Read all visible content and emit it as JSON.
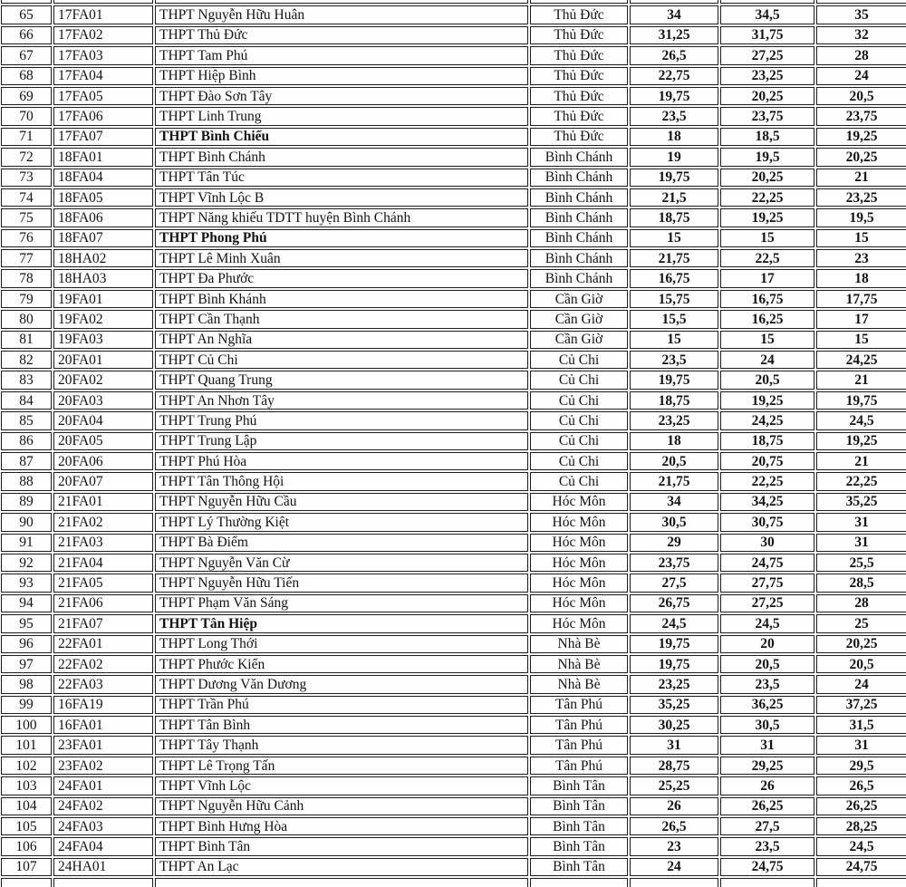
{
  "document": {
    "description": "Scanned table of high-school admission cutoff scores (rows 65-107), Ho Chi Minh City districts",
    "columns": {
      "no": "row number",
      "code": "school code",
      "school": "school name",
      "district": "district",
      "nv1": "score NV1",
      "nv2": "score NV2",
      "nv3": "score NV3"
    }
  },
  "colors": {
    "page_background": "#fbfbfa",
    "cell_background": "#fefefe",
    "border_dark": "#1d1d1d",
    "border_light": "#c9c9c9",
    "text": "#131313"
  },
  "table": {
    "rows": [
      {
        "no": "65",
        "code": "17FA01",
        "school": "THPT Nguyễn Hữu Huân",
        "district": "Thủ Đức",
        "nv1": "34",
        "nv2": "34,5",
        "nv3": "35",
        "bold": false
      },
      {
        "no": "66",
        "code": "17FA02",
        "school": "THPT Thủ Đức",
        "district": "Thủ Đức",
        "nv1": "31,25",
        "nv2": "31,75",
        "nv3": "32",
        "bold": false
      },
      {
        "no": "67",
        "code": "17FA03",
        "school": "THPT Tam Phú",
        "district": "Thủ Đức",
        "nv1": "26,5",
        "nv2": "27,25",
        "nv3": "28",
        "bold": false
      },
      {
        "no": "68",
        "code": "17FA04",
        "school": "THPT Hiệp Bình",
        "district": "Thủ Đức",
        "nv1": "22,75",
        "nv2": "23,25",
        "nv3": "24",
        "bold": false
      },
      {
        "no": "69",
        "code": "17FA05",
        "school": "THPT Đào Sơn Tây",
        "district": "Thủ Đức",
        "nv1": "19,75",
        "nv2": "20,25",
        "nv3": "20,5",
        "bold": false
      },
      {
        "no": "70",
        "code": "17FA06",
        "school": "THPT Linh Trung",
        "district": "Thủ Đức",
        "nv1": "23,5",
        "nv2": "23,75",
        "nv3": "23,75",
        "bold": false
      },
      {
        "no": "71",
        "code": "17FA07",
        "school": "THPT Bình Chiểu",
        "district": "Thủ Đức",
        "nv1": "18",
        "nv2": "18,5",
        "nv3": "19,25",
        "bold": true
      },
      {
        "no": "72",
        "code": "18FA01",
        "school": "THPT Bình Chánh",
        "district": "Bình Chánh",
        "nv1": "19",
        "nv2": "19,5",
        "nv3": "20,25",
        "bold": false
      },
      {
        "no": "73",
        "code": "18FA04",
        "school": "THPT Tân Túc",
        "district": "Bình Chánh",
        "nv1": "19,75",
        "nv2": "20,25",
        "nv3": "21",
        "bold": false
      },
      {
        "no": "74",
        "code": "18FA05",
        "school": "THPT Vĩnh Lộc B",
        "district": "Bình Chánh",
        "nv1": "21,5",
        "nv2": "22,25",
        "nv3": "23,25",
        "bold": false
      },
      {
        "no": "75",
        "code": "18FA06",
        "school": "THPT Năng khiếu TDTT huyện Bình Chánh",
        "district": "Bình Chánh",
        "nv1": "18,75",
        "nv2": "19,25",
        "nv3": "19,5",
        "bold": false
      },
      {
        "no": "76",
        "code": "18FA07",
        "school": "THPT Phong Phú",
        "district": "Bình Chánh",
        "nv1": "15",
        "nv2": "15",
        "nv3": "15",
        "bold": true
      },
      {
        "no": "77",
        "code": "18HA02",
        "school": "THPT Lê Minh Xuân",
        "district": "Bình Chánh",
        "nv1": "21,75",
        "nv2": "22,5",
        "nv3": "23",
        "bold": false
      },
      {
        "no": "78",
        "code": "18HA03",
        "school": "THPT Đa Phước",
        "district": "Bình Chánh",
        "nv1": "16,75",
        "nv2": "17",
        "nv3": "18",
        "bold": false
      },
      {
        "no": "79",
        "code": "19FA01",
        "school": "THPT Bình Khánh",
        "district": "Cần Giờ",
        "nv1": "15,75",
        "nv2": "16,75",
        "nv3": "17,75",
        "bold": false
      },
      {
        "no": "80",
        "code": "19FA02",
        "school": "THPT Cần Thạnh",
        "district": "Cần Giờ",
        "nv1": "15,5",
        "nv2": "16,25",
        "nv3": "17",
        "bold": false
      },
      {
        "no": "81",
        "code": "19FA03",
        "school": "THPT An Nghĩa",
        "district": "Cần Giờ",
        "nv1": "15",
        "nv2": "15",
        "nv3": "15",
        "bold": false
      },
      {
        "no": "82",
        "code": "20FA01",
        "school": "THPT Củ Chi",
        "district": "Củ Chi",
        "nv1": "23,5",
        "nv2": "24",
        "nv3": "24,25",
        "bold": false
      },
      {
        "no": "83",
        "code": "20FA02",
        "school": "THPT Quang Trung",
        "district": "Củ Chi",
        "nv1": "19,75",
        "nv2": "20,5",
        "nv3": "21",
        "bold": false
      },
      {
        "no": "84",
        "code": "20FA03",
        "school": "THPT An Nhơn Tây",
        "district": "Củ Chi",
        "nv1": "18,75",
        "nv2": "19,25",
        "nv3": "19,75",
        "bold": false
      },
      {
        "no": "85",
        "code": "20FA04",
        "school": "THPT Trung Phú",
        "district": "Củ Chi",
        "nv1": "23,25",
        "nv2": "24,25",
        "nv3": "24,5",
        "bold": false
      },
      {
        "no": "86",
        "code": "20FA05",
        "school": "THPT Trung Lập",
        "district": "Củ Chi",
        "nv1": "18",
        "nv2": "18,75",
        "nv3": "19,25",
        "bold": false
      },
      {
        "no": "87",
        "code": "20FA06",
        "school": "THPT Phú Hòa",
        "district": "Củ Chi",
        "nv1": "20,5",
        "nv2": "20,75",
        "nv3": "21",
        "bold": false
      },
      {
        "no": "88",
        "code": "20FA07",
        "school": "THPT Tân Thông Hội",
        "district": "Củ Chi",
        "nv1": "21,75",
        "nv2": "22,25",
        "nv3": "22,25",
        "bold": false
      },
      {
        "no": "89",
        "code": "21FA01",
        "school": "THPT Nguyễn Hữu Cầu",
        "district": "Hóc Môn",
        "nv1": "34",
        "nv2": "34,25",
        "nv3": "35,25",
        "bold": false
      },
      {
        "no": "90",
        "code": "21FA02",
        "school": "THPT Lý Thường Kiệt",
        "district": "Hóc Môn",
        "nv1": "30,5",
        "nv2": "30,75",
        "nv3": "31",
        "bold": false
      },
      {
        "no": "91",
        "code": "21FA03",
        "school": "THPT Bà Điểm",
        "district": "Hóc Môn",
        "nv1": "29",
        "nv2": "30",
        "nv3": "31",
        "bold": false
      },
      {
        "no": "92",
        "code": "21FA04",
        "school": "THPT Nguyễn Văn Cừ",
        "district": "Hóc Môn",
        "nv1": "23,75",
        "nv2": "24,75",
        "nv3": "25,5",
        "bold": false
      },
      {
        "no": "93",
        "code": "21FA05",
        "school": "THPT Nguyễn Hữu Tiến",
        "district": "Hóc Môn",
        "nv1": "27,5",
        "nv2": "27,75",
        "nv3": "28,5",
        "bold": false
      },
      {
        "no": "94",
        "code": "21FA06",
        "school": "THPT Phạm Văn Sáng",
        "district": "Hóc Môn",
        "nv1": "26,75",
        "nv2": "27,25",
        "nv3": "28",
        "bold": false
      },
      {
        "no": "95",
        "code": "21FA07",
        "school": "THPT Tân Hiệp",
        "district": "Hóc Môn",
        "nv1": "24,5",
        "nv2": "24,5",
        "nv3": "25",
        "bold": true
      },
      {
        "no": "96",
        "code": "22FA01",
        "school": "THPT Long Thới",
        "district": "Nhà Bè",
        "nv1": "19,75",
        "nv2": "20",
        "nv3": "20,25",
        "bold": false
      },
      {
        "no": "97",
        "code": "22FA02",
        "school": "THPT Phước Kiển",
        "district": "Nhà Bè",
        "nv1": "19,75",
        "nv2": "20,5",
        "nv3": "20,5",
        "bold": false
      },
      {
        "no": "98",
        "code": "22FA03",
        "school": "THPT Dương Văn Dương",
        "district": "Nhà Bè",
        "nv1": "23,25",
        "nv2": "23,5",
        "nv3": "24",
        "bold": false
      },
      {
        "no": "99",
        "code": "16FA19",
        "school": "THPT Trần Phú",
        "district": "Tân Phú",
        "nv1": "35,25",
        "nv2": "36,25",
        "nv3": "37,25",
        "bold": false
      },
      {
        "no": "100",
        "code": "16FA01",
        "school": "THPT Tân Bình",
        "district": "Tân Phú",
        "nv1": "30,25",
        "nv2": "30,5",
        "nv3": "31,5",
        "bold": false
      },
      {
        "no": "101",
        "code": "23FA01",
        "school": "THPT Tây Thạnh",
        "district": "Tân Phú",
        "nv1": "31",
        "nv2": "31",
        "nv3": "31",
        "bold": false
      },
      {
        "no": "102",
        "code": "23FA02",
        "school": "THPT Lê Trọng Tấn",
        "district": "Tân Phú",
        "nv1": "28,75",
        "nv2": "29,25",
        "nv3": "29,5",
        "bold": false
      },
      {
        "no": "103",
        "code": "24FA01",
        "school": "THPT Vĩnh Lộc",
        "district": "Bình Tân",
        "nv1": "25,25",
        "nv2": "26",
        "nv3": "26,5",
        "bold": false
      },
      {
        "no": "104",
        "code": "24FA02",
        "school": "THPT Nguyễn Hữu Cảnh",
        "district": "Bình Tân",
        "nv1": "26",
        "nv2": "26,25",
        "nv3": "26,25",
        "bold": false
      },
      {
        "no": "105",
        "code": "24FA03",
        "school": "THPT Bình Hưng Hòa",
        "district": "Bình Tân",
        "nv1": "26,5",
        "nv2": "27,5",
        "nv3": "28,25",
        "bold": false
      },
      {
        "no": "106",
        "code": "24FA04",
        "school": "THPT Bình Tân",
        "district": "Bình Tân",
        "nv1": "23",
        "nv2": "23,5",
        "nv3": "24,5",
        "bold": false
      },
      {
        "no": "107",
        "code": "24HA01",
        "school": "THPT An Lạc",
        "district": "Bình Tân",
        "nv1": "24",
        "nv2": "24,75",
        "nv3": "24,75",
        "bold": false
      }
    ]
  }
}
